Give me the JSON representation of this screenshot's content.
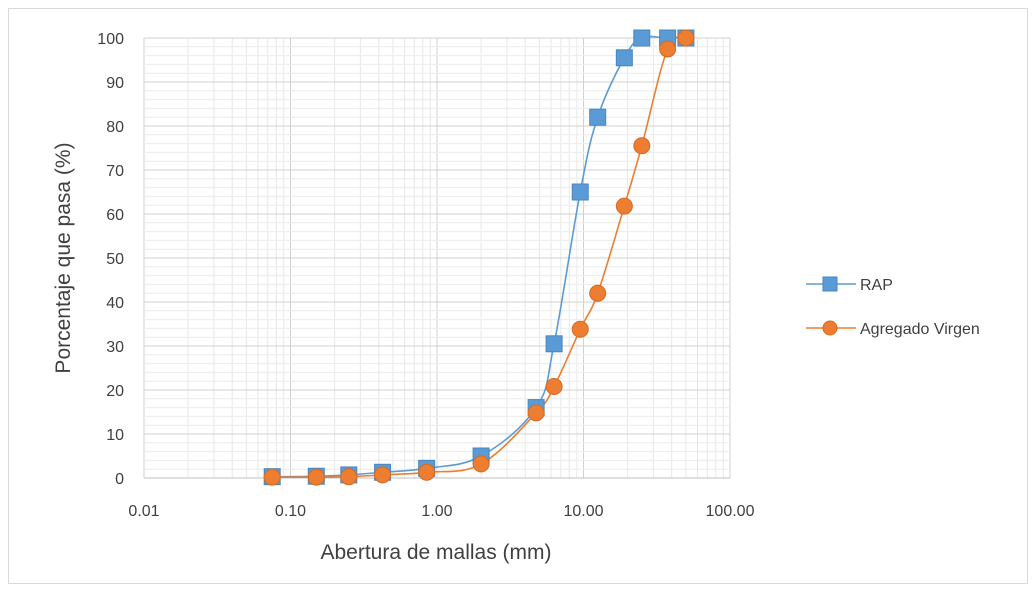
{
  "chart_data": {
    "type": "line",
    "title": "",
    "xlabel": "Abertura de mallas (mm)",
    "ylabel": "Porcentaje que pasa (%)",
    "x_scale": "log",
    "xlim": [
      0.01,
      100
    ],
    "ylim": [
      0,
      100
    ],
    "x_ticks": [
      0.01,
      0.1,
      1,
      10,
      100
    ],
    "x_tick_labels": [
      "0.01",
      "0.10",
      "1.00",
      "10.00",
      "100.00"
    ],
    "y_ticks": [
      0,
      10,
      20,
      30,
      40,
      50,
      60,
      70,
      80,
      90,
      100
    ],
    "y_tick_labels": [
      "0",
      "10",
      "20",
      "30",
      "40",
      "50",
      "60",
      "70",
      "80",
      "90",
      "100"
    ],
    "grid": true,
    "legend_position": "right",
    "series": [
      {
        "name": "RAP",
        "color": "#5b9bd5",
        "marker": "square",
        "points": [
          [
            0.075,
            0.3
          ],
          [
            0.15,
            0.4
          ],
          [
            0.25,
            0.7
          ],
          [
            0.425,
            1.3
          ],
          [
            0.85,
            2.2
          ],
          [
            2.0,
            5.0
          ],
          [
            4.75,
            16.0
          ],
          [
            6.3,
            30.5
          ],
          [
            9.5,
            65.0
          ],
          [
            12.5,
            82.0
          ],
          [
            19.0,
            95.5
          ],
          [
            25.0,
            100.0
          ],
          [
            37.5,
            100.0
          ],
          [
            50.0,
            100.0
          ]
        ]
      },
      {
        "name": "Agregado Virgen",
        "color": "#ed7d31",
        "marker": "circle",
        "points": [
          [
            0.075,
            0.2
          ],
          [
            0.15,
            0.2
          ],
          [
            0.25,
            0.3
          ],
          [
            0.425,
            0.7
          ],
          [
            0.85,
            1.3
          ],
          [
            2.0,
            3.2
          ],
          [
            4.75,
            14.8
          ],
          [
            6.3,
            20.8
          ],
          [
            9.5,
            33.8
          ],
          [
            12.5,
            42.0
          ],
          [
            19.0,
            61.8
          ],
          [
            25.0,
            75.5
          ],
          [
            37.5,
            97.5
          ],
          [
            50.0,
            100.0
          ]
        ]
      }
    ]
  }
}
